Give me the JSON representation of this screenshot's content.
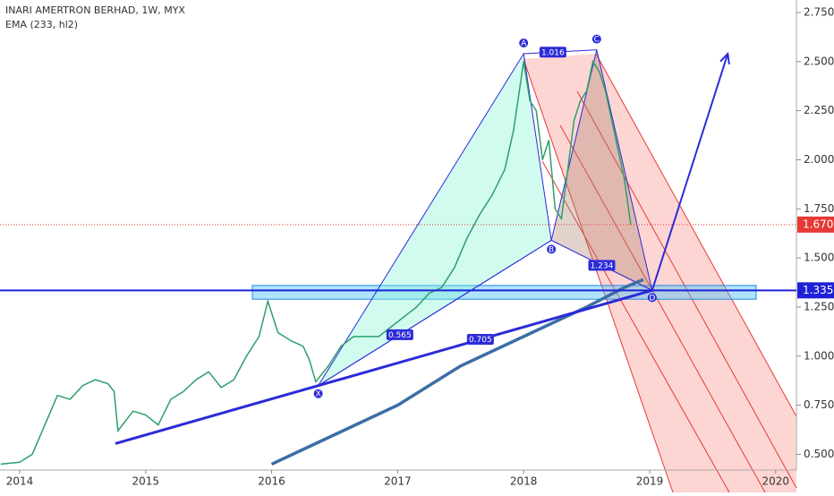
{
  "chart_data": {
    "type": "line",
    "title": "INARI AMERTRON BERHAD, 1W, MYX",
    "subtitle": "EMA (233, hl2)",
    "xlim": [
      2013.844,
      2020.165
    ],
    "xticks": [
      2014,
      2015,
      2016,
      2017,
      2018,
      2019,
      2020
    ],
    "ylim": [
      0.42,
      2.8
    ],
    "yticks": [
      {
        "value": 0.5,
        "label": "0.500"
      },
      {
        "value": 0.75,
        "label": "0.750"
      },
      {
        "value": 1.0,
        "label": "1.000"
      },
      {
        "value": 1.25,
        "label": "1.250"
      },
      {
        "value": 1.5,
        "label": "1.500"
      },
      {
        "value": 1.75,
        "label": "1.750"
      },
      {
        "value": 2.0,
        "label": "2.000"
      },
      {
        "value": 2.25,
        "label": "2.250"
      },
      {
        "value": 2.5,
        "label": "2.500"
      },
      {
        "value": 2.75,
        "label": "2.750"
      }
    ],
    "series": [
      {
        "color": "#2e9e6a",
        "x": [
          2013.85,
          2014.0,
          2014.1,
          2014.2,
          2014.3,
          2014.4,
          2014.5,
          2014.6,
          2014.7,
          2014.75,
          2014.78,
          2014.9,
          2015.0,
          2015.1,
          2015.2,
          2015.3,
          2015.4,
          2015.5,
          2015.6,
          2015.7,
          2015.8,
          2015.9,
          2015.97,
          2016.05,
          2016.15,
          2016.25,
          2016.3,
          2016.35,
          2016.45,
          2016.55,
          2016.65,
          2016.75,
          2016.85,
          2016.95,
          2017.05,
          2017.15,
          2017.25,
          2017.35,
          2017.45,
          2017.55,
          2017.65,
          2017.75,
          2017.85,
          2017.92,
          2018.0,
          2018.05,
          2018.1,
          2018.15,
          2018.2,
          2018.25,
          2018.3,
          2018.35,
          2018.4,
          2018.45,
          2018.5,
          2018.55,
          2018.6,
          2018.65,
          2018.7,
          2018.75,
          2018.8,
          2018.85
        ],
        "values": [
          0.45,
          0.46,
          0.5,
          0.65,
          0.8,
          0.78,
          0.85,
          0.88,
          0.86,
          0.82,
          0.62,
          0.72,
          0.7,
          0.65,
          0.78,
          0.82,
          0.88,
          0.92,
          0.84,
          0.88,
          1.0,
          1.1,
          1.28,
          1.12,
          1.08,
          1.05,
          0.98,
          0.87,
          0.95,
          1.05,
          1.1,
          1.1,
          1.1,
          1.15,
          1.2,
          1.25,
          1.32,
          1.35,
          1.45,
          1.6,
          1.72,
          1.82,
          1.95,
          2.15,
          2.5,
          2.3,
          2.25,
          2.0,
          2.1,
          1.75,
          1.7,
          1.95,
          2.2,
          2.3,
          2.35,
          2.5,
          2.45,
          2.35,
          2.2,
          2.05,
          1.9,
          1.67
        ]
      },
      {
        "color": "#3b6ea5",
        "x": [
          2016.0,
          2016.5,
          2017.0,
          2017.5,
          2018.0,
          2018.5,
          2018.8,
          2018.95
        ],
        "values": [
          0.45,
          0.6,
          0.75,
          0.95,
          1.1,
          1.25,
          1.35,
          1.39
        ]
      }
    ],
    "pattern": {
      "color": "#2b2bd9",
      "points": [
        {
          "label": "X",
          "x": 2016.37,
          "y": 0.85
        },
        {
          "label": "A",
          "x": 2018.0,
          "y": 2.54
        },
        {
          "label": "B",
          "x": 2018.22,
          "y": 1.59
        },
        {
          "label": "C",
          "x": 2018.58,
          "y": 2.56
        },
        {
          "label": "D",
          "x": 2019.02,
          "y": 1.335
        }
      ],
      "ratios": [
        "0.565",
        "1.016",
        "1.234",
        "0.705"
      ],
      "trendline": {
        "x": [
          2014.76,
          2019.02
        ],
        "y": [
          0.555,
          1.335
        ]
      },
      "arrow": {
        "x": [
          2019.02,
          2019.62
        ],
        "y": [
          1.335,
          2.54
        ]
      }
    },
    "zone": [
      1.29,
      1.36
    ],
    "price_lines": [
      {
        "value": 1.67,
        "label": "1.670",
        "color": "#e53935"
      },
      {
        "value": 1.335,
        "label": "1.335",
        "color": "#1e22d6"
      }
    ]
  }
}
